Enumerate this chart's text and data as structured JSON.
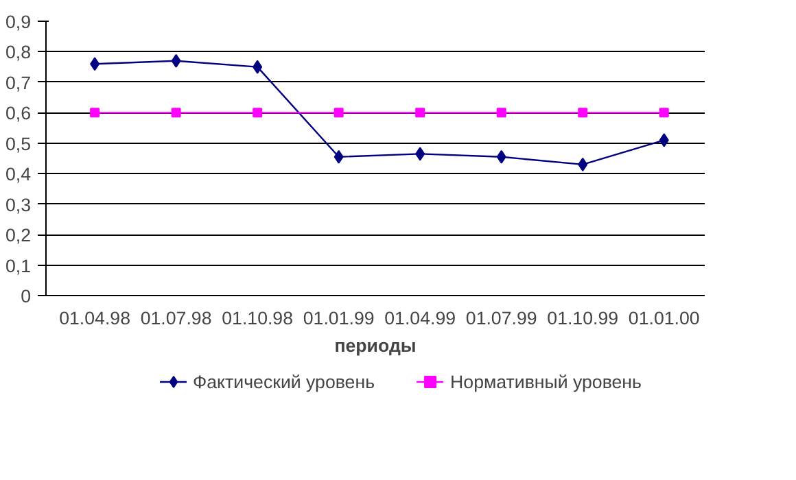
{
  "chart_data": {
    "type": "line",
    "xlabel": "периоды",
    "categories": [
      "01.04.98",
      "01.07.98",
      "01.10.98",
      "01.01.99",
      "01.04.99",
      "01.07.99",
      "01.10.99",
      "01.01.00"
    ],
    "series": [
      {
        "name": "Фактический уровень",
        "color": "#000080",
        "marker": "diamond",
        "values": [
          0.76,
          0.77,
          0.75,
          0.455,
          0.465,
          0.455,
          0.43,
          0.51
        ]
      },
      {
        "name": "Нормативный уровень",
        "color": "#ff00ff",
        "marker": "square",
        "values": [
          0.6,
          0.6,
          0.6,
          0.6,
          0.6,
          0.6,
          0.6,
          0.6
        ]
      }
    ],
    "ylim": [
      0,
      0.9
    ],
    "yticks": [
      {
        "value": 0,
        "label": "0"
      },
      {
        "value": 0.1,
        "label": "0,1"
      },
      {
        "value": 0.2,
        "label": "0,2"
      },
      {
        "value": 0.3,
        "label": "0,3"
      },
      {
        "value": 0.4,
        "label": "0,4"
      },
      {
        "value": 0.5,
        "label": "0,5"
      },
      {
        "value": 0.6,
        "label": "0,6"
      },
      {
        "value": 0.7,
        "label": "0,7"
      },
      {
        "value": 0.8,
        "label": "0,8"
      },
      {
        "value": 0.9,
        "label": "0,9"
      }
    ],
    "grid": "y",
    "legend": "bottom",
    "line_style": "solid"
  }
}
